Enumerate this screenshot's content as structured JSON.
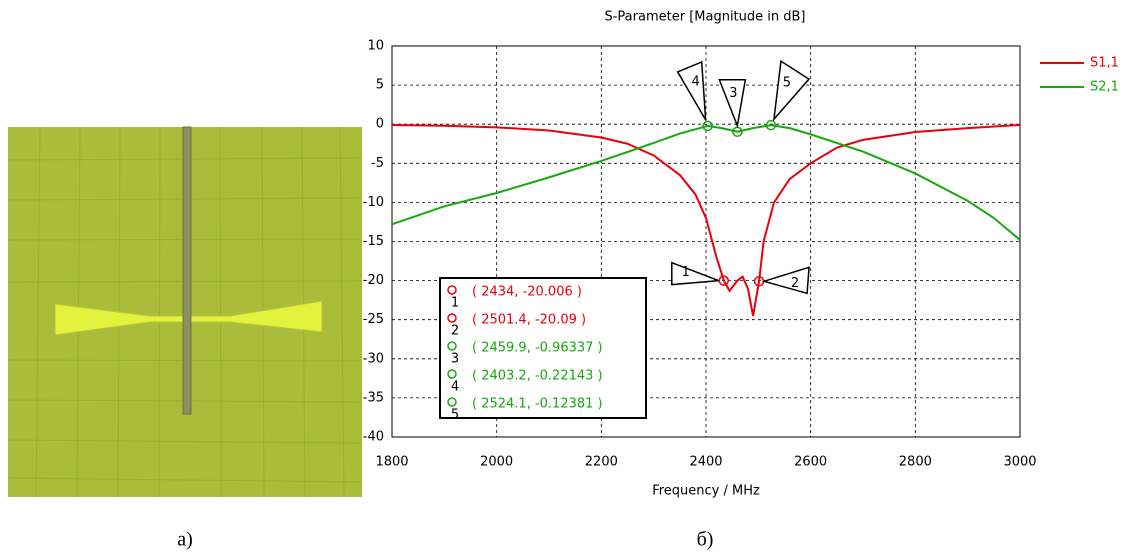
{
  "captions": [
    "а)",
    "б)"
  ],
  "chart_data": {
    "type": "line",
    "title": "S-Parameter [Magnitude in dB]",
    "x_label": "Frequency / MHz",
    "xlim": [
      1800,
      3000
    ],
    "ylim": [
      -40,
      10
    ],
    "xticks": [
      1800,
      2000,
      2200,
      2400,
      2600,
      2800,
      3000
    ],
    "yticks": [
      10,
      5,
      0,
      -5,
      -10,
      -15,
      -20,
      -25,
      -30,
      -35,
      -40
    ],
    "grid": true,
    "legend": "right",
    "series": [
      {
        "name": "S1,1",
        "color": "#e8000b",
        "x": [
          1800,
          1900,
          2000,
          2100,
          2200,
          2250,
          2300,
          2350,
          2380,
          2400,
          2420,
          2434,
          2445,
          2460,
          2470,
          2480,
          2490,
          2501.4,
          2510,
          2530,
          2560,
          2600,
          2650,
          2700,
          2800,
          2900,
          3000
        ],
        "values": [
          -0.1,
          -0.2,
          -0.4,
          -0.8,
          -1.7,
          -2.5,
          -4,
          -6.5,
          -9,
          -12,
          -17,
          -20.006,
          -21.3,
          -20,
          -19.5,
          -21,
          -24.5,
          -20.09,
          -15,
          -10,
          -7,
          -5,
          -3,
          -2,
          -1,
          -0.5,
          -0.1
        ]
      },
      {
        "name": "S2,1",
        "color": "#16a80e",
        "x": [
          1800,
          1900,
          2000,
          2100,
          2200,
          2300,
          2350,
          2403.2,
          2430,
          2459.9,
          2490,
          2524.1,
          2560,
          2600,
          2700,
          2800,
          2900,
          2950,
          3000
        ],
        "values": [
          -12.8,
          -10.5,
          -8.8,
          -6.8,
          -4.7,
          -2.4,
          -1.2,
          -0.22143,
          -0.5,
          -0.96337,
          -0.5,
          -0.12381,
          -0.5,
          -1.3,
          -3.5,
          -6.3,
          -9.8,
          -12,
          -14.8
        ]
      }
    ],
    "markers": [
      {
        "id": "1",
        "series": 0,
        "x": 2434,
        "y": -20.006,
        "label": "( 2434, -20.006 )"
      },
      {
        "id": "2",
        "series": 0,
        "x": 2501.4,
        "y": -20.09,
        "label": "( 2501.4, -20.09 )"
      },
      {
        "id": "3",
        "series": 1,
        "x": 2459.9,
        "y": -0.96337,
        "label": "( 2459.9, -0.96337 )"
      },
      {
        "id": "4",
        "series": 1,
        "x": 2403.2,
        "y": -0.22143,
        "label": "( 2403.2, -0.22143 )"
      },
      {
        "id": "5",
        "series": 1,
        "x": 2524.1,
        "y": -0.12381,
        "label": "( 2524.1, -0.12381 )"
      }
    ]
  }
}
